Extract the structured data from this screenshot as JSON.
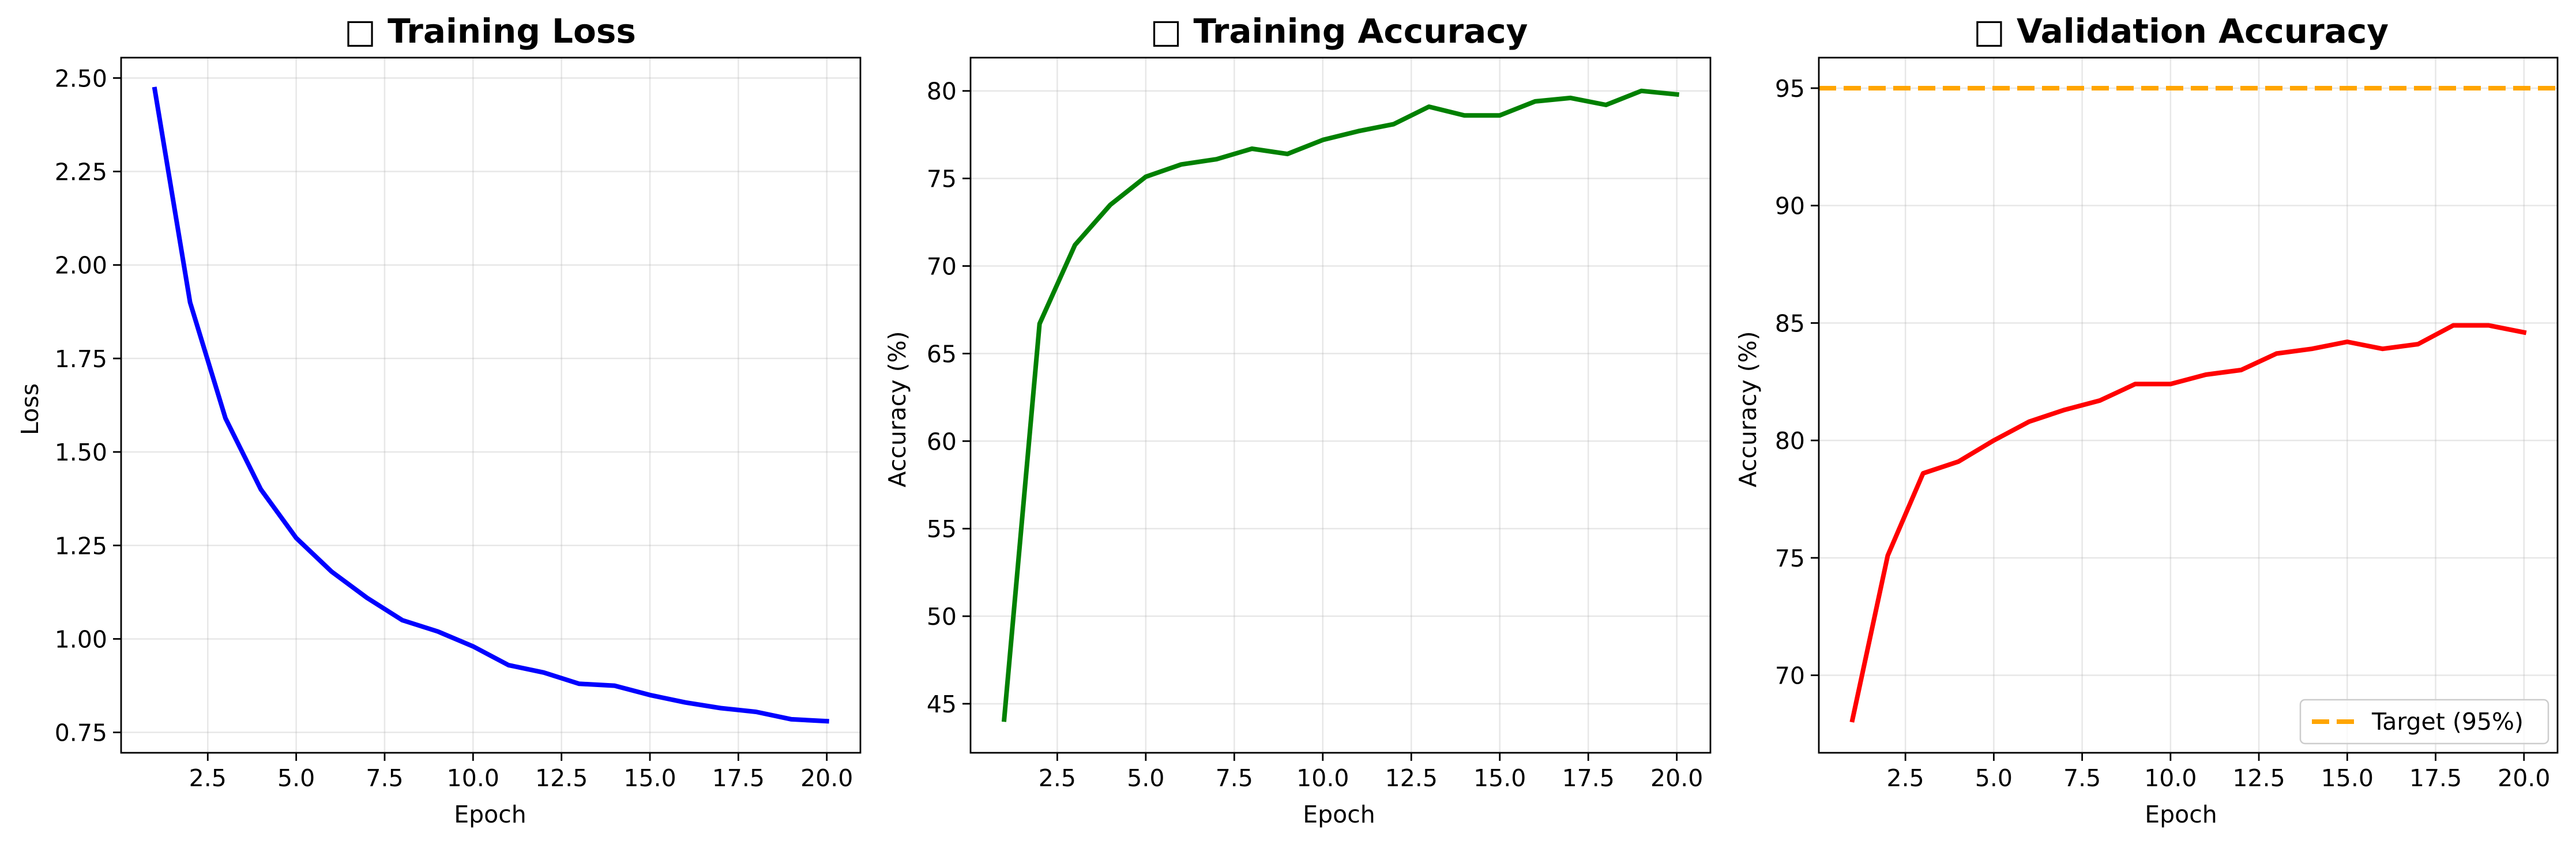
{
  "chart_data": [
    {
      "type": "line",
      "title": "□ Training Loss",
      "xlabel": "Epoch",
      "ylabel": "Loss",
      "xlim": [
        0.05,
        20.95
      ],
      "ylim": [
        0.6955,
        2.5545
      ],
      "xticks": [
        2.5,
        5.0,
        7.5,
        10.0,
        12.5,
        15.0,
        17.5,
        20.0
      ],
      "xtick_labels": [
        "2.5",
        "5.0",
        "7.5",
        "10.0",
        "12.5",
        "15.0",
        "17.5",
        "20.0"
      ],
      "yticks": [
        0.75,
        1.0,
        1.25,
        1.5,
        1.75,
        2.0,
        2.25,
        2.5
      ],
      "ytick_labels": [
        "0.75",
        "1.00",
        "1.25",
        "1.50",
        "1.75",
        "2.00",
        "2.25",
        "2.50"
      ],
      "grid": true,
      "series": [
        {
          "color": "#0000ff",
          "x": [
            1,
            2,
            3,
            4,
            5,
            6,
            7,
            8,
            9,
            10,
            11,
            12,
            13,
            14,
            15,
            16,
            17,
            18,
            19,
            20
          ],
          "values": [
            2.47,
            1.9,
            1.59,
            1.4,
            1.27,
            1.18,
            1.11,
            1.05,
            1.02,
            0.98,
            0.93,
            0.91,
            0.88,
            0.875,
            0.85,
            0.83,
            0.815,
            0.805,
            0.785,
            0.78
          ]
        }
      ]
    },
    {
      "type": "line",
      "title": "□ Training Accuracy",
      "xlabel": "Epoch",
      "ylabel": "Accuracy (%)",
      "xlim": [
        0.05,
        20.95
      ],
      "ylim": [
        42.2,
        81.9
      ],
      "xticks": [
        2.5,
        5.0,
        7.5,
        10.0,
        12.5,
        15.0,
        17.5,
        20.0
      ],
      "xtick_labels": [
        "2.5",
        "5.0",
        "7.5",
        "10.0",
        "12.5",
        "15.0",
        "17.5",
        "20.0"
      ],
      "yticks": [
        45,
        50,
        55,
        60,
        65,
        70,
        75,
        80
      ],
      "ytick_labels": [
        "45",
        "50",
        "55",
        "60",
        "65",
        "70",
        "75",
        "80"
      ],
      "grid": true,
      "series": [
        {
          "color": "#008000",
          "x": [
            1,
            2,
            3,
            4,
            5,
            6,
            7,
            8,
            9,
            10,
            11,
            12,
            13,
            14,
            15,
            16,
            17,
            18,
            19,
            20
          ],
          "values": [
            44.1,
            66.7,
            71.2,
            73.5,
            75.1,
            75.8,
            76.1,
            76.7,
            76.4,
            77.2,
            77.7,
            78.1,
            79.1,
            78.6,
            78.6,
            79.4,
            79.6,
            79.2,
            80.0,
            79.8
          ]
        }
      ]
    },
    {
      "type": "line",
      "title": "□ Validation Accuracy",
      "xlabel": "Epoch",
      "ylabel": "Accuracy (%)",
      "xlim": [
        0.05,
        20.95
      ],
      "ylim": [
        66.7,
        96.3
      ],
      "xticks": [
        2.5,
        5.0,
        7.5,
        10.0,
        12.5,
        15.0,
        17.5,
        20.0
      ],
      "xtick_labels": [
        "2.5",
        "5.0",
        "7.5",
        "10.0",
        "12.5",
        "15.0",
        "17.5",
        "20.0"
      ],
      "yticks": [
        70,
        75,
        80,
        85,
        90,
        95
      ],
      "ytick_labels": [
        "70",
        "75",
        "80",
        "85",
        "90",
        "95"
      ],
      "grid": true,
      "legend": "bottom-right",
      "series": [
        {
          "color": "#ff0000",
          "x": [
            1,
            2,
            3,
            4,
            5,
            6,
            7,
            8,
            9,
            10,
            11,
            12,
            13,
            14,
            15,
            16,
            17,
            18,
            19,
            20
          ],
          "values": [
            68.1,
            75.1,
            78.6,
            79.1,
            80.0,
            80.8,
            81.3,
            81.7,
            82.4,
            82.4,
            82.8,
            83.0,
            83.7,
            83.9,
            84.2,
            83.9,
            84.1,
            84.9,
            84.9,
            84.6
          ]
        }
      ],
      "reference_lines": [
        {
          "name": "Target (95%)",
          "y": 95,
          "color": "#ffa500",
          "style": "dashed"
        }
      ]
    }
  ]
}
